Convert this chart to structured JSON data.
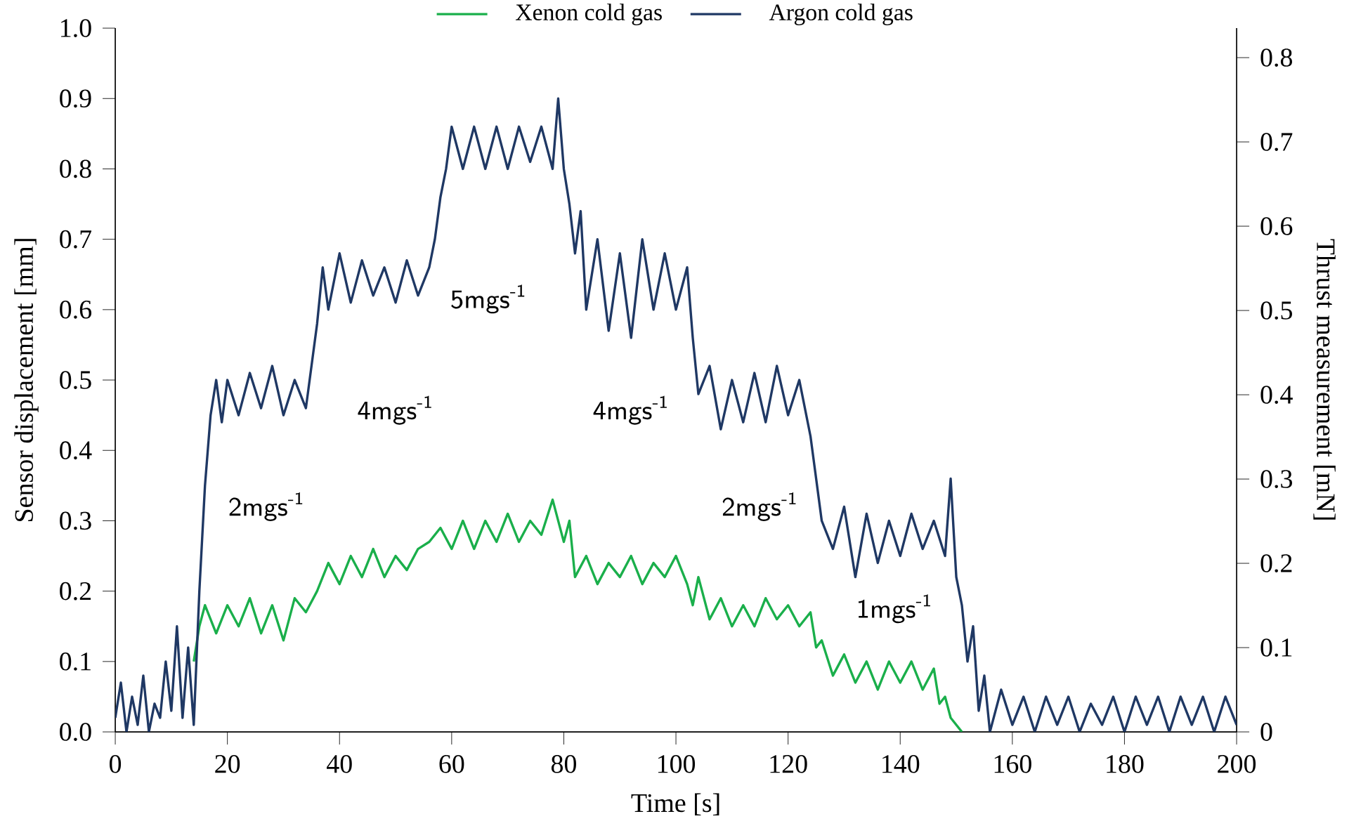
{
  "chart_data": {
    "type": "line",
    "xlabel": "Time [s]",
    "ylabel": "Sensor displacement [mm]",
    "y2label": "Thrust measurement [mN]",
    "xlim": [
      0,
      200
    ],
    "xticks": [
      0,
      20,
      40,
      60,
      80,
      100,
      120,
      140,
      160,
      180,
      200
    ],
    "ylim": [
      0,
      1
    ],
    "yticks": [
      {
        "value": 0,
        "label": "0.0"
      },
      {
        "value": 0.1,
        "label": "0.1"
      },
      {
        "value": 0.2,
        "label": "0.2"
      },
      {
        "value": 0.3,
        "label": "0.3"
      },
      {
        "value": 0.4,
        "label": "0.4"
      },
      {
        "value": 0.5,
        "label": "0.5"
      },
      {
        "value": 0.6,
        "label": "0.6"
      },
      {
        "value": 0.7,
        "label": "0.7"
      },
      {
        "value": 0.8,
        "label": "0.8"
      },
      {
        "value": 0.9,
        "label": "0.9"
      },
      {
        "value": 1,
        "label": "1.0"
      }
    ],
    "y2lim": [
      0,
      0.835
    ],
    "y2ticks": [
      0,
      0.1,
      0.2,
      0.3,
      0.4,
      0.5,
      0.6,
      0.7,
      0.8
    ],
    "legend": "top",
    "marker": "none",
    "line_style": "solid",
    "grid": false,
    "series": [
      {
        "name": "Xenon cold gas",
        "color": "#1aaf4b",
        "x": [
          14,
          15,
          16,
          18,
          20,
          22,
          24,
          26,
          28,
          30,
          32,
          34,
          36,
          38,
          40,
          42,
          44,
          46,
          48,
          50,
          52,
          54,
          56,
          58,
          60,
          62,
          64,
          66,
          68,
          70,
          72,
          74,
          76,
          78,
          80,
          81,
          82,
          84,
          86,
          88,
          90,
          92,
          94,
          96,
          98,
          100,
          102,
          103,
          104,
          106,
          108,
          110,
          112,
          114,
          116,
          118,
          120,
          122,
          124,
          125,
          126,
          128,
          130,
          132,
          134,
          136,
          138,
          140,
          142,
          144,
          146,
          147,
          148,
          149,
          150,
          151
        ],
        "values": [
          0.1,
          0.15,
          0.18,
          0.14,
          0.18,
          0.15,
          0.19,
          0.14,
          0.18,
          0.13,
          0.19,
          0.17,
          0.2,
          0.24,
          0.21,
          0.25,
          0.22,
          0.26,
          0.22,
          0.25,
          0.23,
          0.26,
          0.27,
          0.29,
          0.26,
          0.3,
          0.26,
          0.3,
          0.27,
          0.31,
          0.27,
          0.3,
          0.28,
          0.33,
          0.27,
          0.3,
          0.22,
          0.25,
          0.21,
          0.24,
          0.22,
          0.25,
          0.21,
          0.24,
          0.22,
          0.25,
          0.21,
          0.18,
          0.22,
          0.16,
          0.19,
          0.15,
          0.18,
          0.15,
          0.19,
          0.16,
          0.18,
          0.15,
          0.17,
          0.12,
          0.13,
          0.08,
          0.11,
          0.07,
          0.1,
          0.06,
          0.1,
          0.07,
          0.1,
          0.06,
          0.09,
          0.04,
          0.05,
          0.02,
          0.01,
          0.0
        ]
      },
      {
        "name": "Argon cold gas",
        "color": "#1f3864",
        "x": [
          0,
          1,
          2,
          3,
          4,
          5,
          6,
          7,
          8,
          9,
          10,
          11,
          12,
          13,
          14,
          15,
          16,
          17,
          18,
          19,
          20,
          22,
          24,
          26,
          28,
          30,
          32,
          34,
          35,
          36,
          37,
          38,
          40,
          42,
          44,
          46,
          48,
          50,
          52,
          54,
          56,
          57,
          58,
          59,
          60,
          62,
          64,
          66,
          68,
          70,
          72,
          74,
          76,
          78,
          79,
          80,
          81,
          82,
          83,
          84,
          86,
          88,
          90,
          92,
          94,
          96,
          98,
          100,
          102,
          103,
          104,
          106,
          108,
          110,
          112,
          114,
          116,
          118,
          120,
          122,
          124,
          125,
          126,
          128,
          130,
          132,
          134,
          136,
          138,
          140,
          142,
          144,
          146,
          148,
          149,
          150,
          151,
          152,
          153,
          154,
          155,
          156,
          158,
          160,
          162,
          164,
          166,
          168,
          170,
          172,
          174,
          176,
          178,
          180,
          182,
          184,
          186,
          188,
          190,
          192,
          194,
          196,
          198,
          200
        ],
        "values": [
          0.02,
          0.07,
          0.0,
          0.05,
          0.01,
          0.08,
          0.0,
          0.04,
          0.02,
          0.1,
          0.03,
          0.15,
          0.02,
          0.12,
          0.01,
          0.2,
          0.35,
          0.45,
          0.5,
          0.44,
          0.5,
          0.45,
          0.51,
          0.46,
          0.52,
          0.45,
          0.5,
          0.46,
          0.52,
          0.58,
          0.66,
          0.6,
          0.68,
          0.61,
          0.67,
          0.62,
          0.66,
          0.61,
          0.67,
          0.62,
          0.66,
          0.7,
          0.76,
          0.8,
          0.86,
          0.8,
          0.86,
          0.8,
          0.86,
          0.8,
          0.86,
          0.81,
          0.86,
          0.8,
          0.9,
          0.8,
          0.75,
          0.68,
          0.74,
          0.6,
          0.7,
          0.57,
          0.68,
          0.56,
          0.7,
          0.6,
          0.68,
          0.6,
          0.66,
          0.56,
          0.48,
          0.52,
          0.43,
          0.5,
          0.44,
          0.51,
          0.44,
          0.52,
          0.45,
          0.5,
          0.42,
          0.36,
          0.3,
          0.26,
          0.32,
          0.22,
          0.31,
          0.24,
          0.3,
          0.25,
          0.31,
          0.26,
          0.3,
          0.25,
          0.36,
          0.22,
          0.18,
          0.1,
          0.15,
          0.03,
          0.08,
          0.0,
          0.06,
          0.01,
          0.05,
          0.0,
          0.05,
          0.01,
          0.05,
          0.0,
          0.04,
          0.01,
          0.05,
          0.0,
          0.05,
          0.01,
          0.05,
          0.0,
          0.05,
          0.01,
          0.05,
          0.0,
          0.05,
          0.01
        ]
      }
    ],
    "annotations": [
      "2mgs$^{-1}$",
      "4mgs$^{-1}$",
      "5mgs$^{-1}$",
      "4mgs$^{-1}$",
      "2mgs$^{-1}$",
      "1mgs$^{-1}$"
    ]
  }
}
